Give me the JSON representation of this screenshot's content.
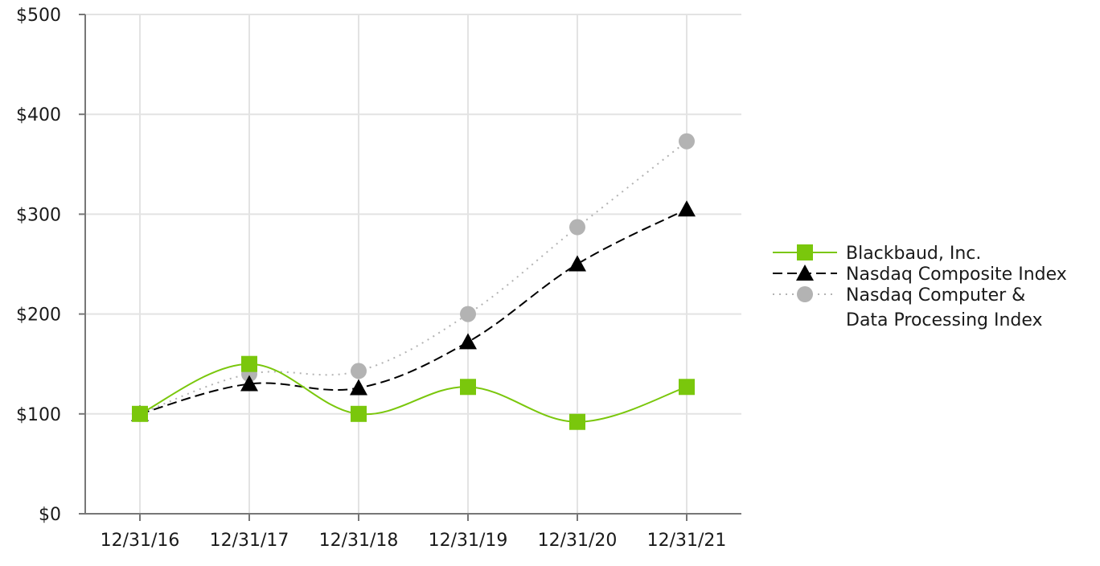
{
  "chart_data": {
    "type": "line",
    "title": "",
    "xlabel": "",
    "ylabel": "",
    "categories": [
      "12/31/16",
      "12/31/17",
      "12/31/18",
      "12/31/19",
      "12/31/20",
      "12/31/21"
    ],
    "y_ticks": [
      "$0",
      "$100",
      "$200",
      "$300",
      "$400",
      "$500"
    ],
    "y_tick_values": [
      0,
      100,
      200,
      300,
      400,
      500
    ],
    "ylim": [
      0,
      500
    ],
    "grid": true,
    "legend_position": "right",
    "series": [
      {
        "name": "Blackbaud, Inc.",
        "values": [
          100,
          150,
          100,
          127,
          92,
          127
        ],
        "color": "#7ac70c",
        "line_style": "solid",
        "marker": "square"
      },
      {
        "name": "Nasdaq Composite Index",
        "values": [
          100,
          130,
          126,
          172,
          250,
          305
        ],
        "color": "#000000",
        "line_style": "dashed",
        "marker": "triangle"
      },
      {
        "name": "Nasdaq Computer & Data Processing Index",
        "name_lines": [
          "Nasdaq Computer &",
          "Data Processing Index"
        ],
        "values": [
          100,
          140,
          143,
          200,
          287,
          373
        ],
        "color": "#b3b3b3",
        "line_style": "dotted",
        "marker": "circle"
      }
    ]
  }
}
